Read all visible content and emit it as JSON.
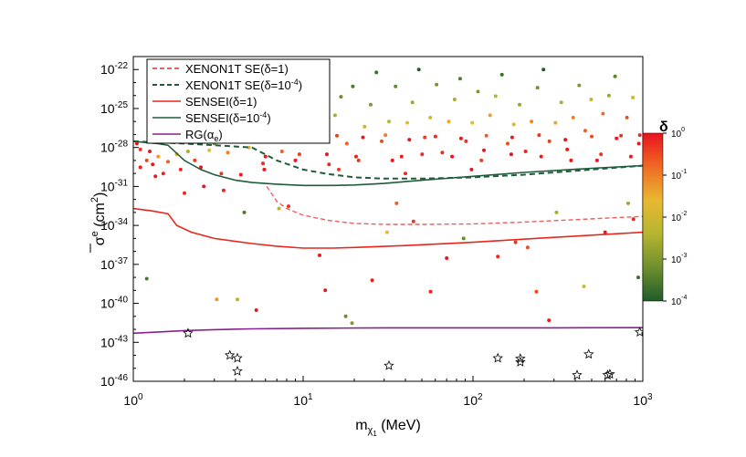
{
  "chart_data": {
    "type": "scatter",
    "title": "",
    "xlabel": {
      "base": "m",
      "sub": "χ",
      "subsub": "1",
      "unit": " (MeV)"
    },
    "ylabel": {
      "base": "σ",
      "sup": "e",
      "unit": " (cm",
      "unit_sup": "2",
      "unit_end": ")"
    },
    "x_scale": "log",
    "y_scale": "log",
    "xlim": [
      1,
      1000
    ],
    "ylim": [
      1e-46,
      1e-21
    ],
    "x_ticks": [
      {
        "value": 1,
        "base": "10",
        "exp": "0"
      },
      {
        "value": 10,
        "base": "10",
        "exp": "1"
      },
      {
        "value": 100,
        "base": "10",
        "exp": "2"
      },
      {
        "value": 1000,
        "base": "10",
        "exp": "3"
      }
    ],
    "y_ticks": [
      {
        "value": 1e-22,
        "base": "10",
        "exp": "-22"
      },
      {
        "value": 1e-25,
        "base": "10",
        "exp": "-25"
      },
      {
        "value": 1e-28,
        "base": "10",
        "exp": "-28"
      },
      {
        "value": 1e-31,
        "base": "10",
        "exp": "-31"
      },
      {
        "value": 1e-34,
        "base": "10",
        "exp": "-34"
      },
      {
        "value": 1e-37,
        "base": "10",
        "exp": "-37"
      },
      {
        "value": 1e-40,
        "base": "10",
        "exp": "-40"
      },
      {
        "value": 1e-43,
        "base": "10",
        "exp": "-43"
      },
      {
        "value": 1e-46,
        "base": "10",
        "exp": "-46"
      }
    ],
    "legend_placement": "top-left",
    "series": [
      {
        "name": "XENON1T SE(δ=1)",
        "legend_parts": {
          "main": "XENON1T SE(δ=1)",
          "sup": ""
        },
        "style": "dashed",
        "color": "#f25c5c",
        "x": [
          6.1,
          7,
          8,
          10,
          14,
          20,
          30,
          50,
          100,
          200,
          400,
          1000
        ],
        "y": [
          1e-31,
          7e-33,
          2e-33,
          6e-34,
          2.5e-34,
          1.4e-34,
          1.2e-34,
          1.2e-34,
          1.3e-34,
          1.8e-34,
          2.8e-34,
          5e-34
        ]
      },
      {
        "name": "XENON1T SE(δ=10-4)",
        "legend_parts": {
          "main": "XENON1T SE(δ=10",
          "sup": "-4",
          "tail": ")"
        },
        "style": "dashed",
        "color": "#1e5c3a",
        "x": [
          1,
          2,
          3,
          5,
          7,
          10,
          14,
          20,
          30,
          50,
          100,
          200,
          500,
          1000
        ],
        "y": [
          3e-28,
          2e-28,
          1.5e-28,
          1e-28,
          1e-29,
          2e-30,
          9e-31,
          5e-31,
          4e-31,
          4e-31,
          5e-31,
          8e-31,
          2e-30,
          4e-30
        ]
      },
      {
        "name": "SENSEI(δ=1)",
        "legend_parts": {
          "main": "SENSEI(δ=1)",
          "sup": ""
        },
        "style": "solid",
        "color": "#e8261c",
        "x": [
          1,
          1.3,
          1.6,
          1.8,
          2.2,
          3,
          5,
          7,
          10,
          15,
          20,
          40,
          100,
          300,
          1000
        ],
        "y": [
          2e-33,
          1.3e-33,
          8e-34,
          1e-34,
          3e-35,
          1e-35,
          4e-36,
          2.5e-36,
          1.8e-36,
          1.8e-36,
          2e-36,
          2.8e-36,
          5e-36,
          1.2e-35,
          3e-35
        ]
      },
      {
        "name": "SENSEI(δ=10-4)",
        "legend_parts": {
          "main": "SENSEI(δ=10",
          "sup": "-4",
          "tail": ")"
        },
        "style": "solid",
        "color": "#1e5c3a",
        "x": [
          1,
          1.4,
          1.6,
          2,
          2.5,
          3,
          4,
          5,
          7,
          10,
          15,
          20,
          30,
          50,
          100,
          200,
          500,
          1000
        ],
        "y": [
          3e-28,
          2e-28,
          1.5e-28,
          1e-29,
          2e-30,
          8e-31,
          3e-31,
          2e-31,
          1.5e-31,
          1.2e-31,
          1.2e-31,
          1.3e-31,
          1.7e-31,
          3e-31,
          6e-31,
          1.2e-30,
          2.5e-30,
          4e-30
        ]
      },
      {
        "name": "RG(αe)",
        "legend_parts": {
          "main": "RG(α",
          "sub": "e",
          "tail": ")"
        },
        "style": "solid",
        "color": "#8a1f8f",
        "x": [
          1,
          1.5,
          2,
          3,
          5,
          10,
          30,
          100,
          300,
          1000
        ],
        "y": [
          5e-43,
          6.5e-43,
          8e-43,
          9.5e-43,
          1.1e-42,
          1.2e-42,
          1.3e-42,
          1.3e-42,
          1.3e-42,
          1.35e-42
        ]
      }
    ],
    "stars": {
      "name": "benchmark points",
      "x": [
        2.1,
        3.7,
        4.1,
        4.1,
        32,
        140,
        190,
        190,
        410,
        480,
        620,
        640,
        960
      ],
      "y": [
        5e-43,
        1e-44,
        6e-45,
        6e-46,
        1.6e-45,
        6e-45,
        3e-45,
        5.5e-45,
        3e-46,
        1.2e-44,
        3e-46,
        3.5e-46,
        6e-43
      ]
    },
    "dots": {
      "name": "scan points colored by δ",
      "color_scale": "δ",
      "points": [
        [
          1.1,
          3e-30,
          0.8
        ],
        [
          1.2,
          1e-29,
          0.3
        ],
        [
          1.3,
          5e-30,
          0.9
        ],
        [
          1.4,
          2e-29,
          0.05
        ],
        [
          1.5,
          1e-30,
          0.7
        ],
        [
          1.6,
          8e-30,
          0.2
        ],
        [
          1.8,
          3e-29,
          0.01
        ],
        [
          1.9,
          2e-30,
          0.6
        ],
        [
          2.1,
          5e-29,
          0.003
        ],
        [
          2.3,
          1e-29,
          0.4
        ],
        [
          2.5,
          3e-30,
          0.9
        ],
        [
          2.8,
          6e-29,
          0.02
        ],
        [
          3.0,
          2e-28,
          0.001
        ],
        [
          3.3,
          1e-30,
          0.5
        ],
        [
          3.6,
          4e-29,
          0.1
        ],
        [
          4.0,
          2e-27,
          0.0005
        ],
        [
          4.3,
          8e-31,
          0.8
        ],
        [
          4.8,
          1e-28,
          0.03
        ],
        [
          5.2,
          3e-26,
          0.0003
        ],
        [
          5.8,
          6e-30,
          0.6
        ],
        [
          6.3,
          2e-27,
          0.002
        ],
        [
          6.9,
          1e-25,
          0.0002
        ],
        [
          7.5,
          5e-29,
          0.2
        ],
        [
          8.1,
          3e-26,
          0.0008
        ],
        [
          8.8,
          1e-24,
          0.0001
        ],
        [
          9.5,
          3e-29,
          0.4
        ],
        [
          10.3,
          6e-27,
          0.005
        ],
        [
          11.2,
          2e-25,
          0.0004
        ],
        [
          12.1,
          4e-28,
          0.1
        ],
        [
          13.1,
          1e-23,
          0.0002
        ],
        [
          14.2,
          5e-30,
          0.7
        ],
        [
          15.4,
          3e-26,
          0.003
        ],
        [
          16.7,
          8e-25,
          0.0006
        ],
        [
          18.1,
          2e-28,
          0.2
        ],
        [
          19.6,
          5e-24,
          0.0003
        ],
        [
          21.2,
          1e-29,
          0.5
        ],
        [
          23,
          4e-27,
          0.01
        ],
        [
          25,
          2e-25,
          0.001
        ],
        [
          27,
          6e-23,
          0.0002
        ],
        [
          29,
          3e-28,
          0.3
        ],
        [
          32,
          1e-26,
          0.005
        ],
        [
          35,
          5e-24,
          0.0005
        ],
        [
          38,
          2e-29,
          0.8
        ],
        [
          41,
          8e-27,
          0.02
        ],
        [
          44,
          3e-25,
          0.002
        ],
        [
          48,
          1e-22,
          0.0001
        ],
        [
          52,
          6e-28,
          0.4
        ],
        [
          56,
          2e-26,
          0.01
        ],
        [
          61,
          7e-24,
          0.0008
        ],
        [
          66,
          4e-29,
          0.6
        ],
        [
          72,
          1e-26,
          0.04
        ],
        [
          78,
          5e-25,
          0.003
        ],
        [
          84,
          2e-23,
          0.0003
        ],
        [
          91,
          3e-28,
          0.5
        ],
        [
          99,
          8e-27,
          0.02
        ],
        [
          107,
          2e-24,
          0.001
        ],
        [
          116,
          6e-29,
          0.9
        ],
        [
          126,
          3e-26,
          0.05
        ],
        [
          136,
          9e-25,
          0.004
        ],
        [
          148,
          4e-23,
          0.0002
        ],
        [
          160,
          2e-28,
          0.3
        ],
        [
          174,
          6e-27,
          0.03
        ],
        [
          188,
          2e-25,
          0.002
        ],
        [
          204,
          5e-29,
          0.7
        ],
        [
          221,
          1e-26,
          0.08
        ],
        [
          240,
          4e-24,
          0.0007
        ],
        [
          260,
          1e-22,
          0.0001
        ],
        [
          282,
          3e-28,
          0.4
        ],
        [
          306,
          8e-27,
          0.04
        ],
        [
          331,
          3e-25,
          0.003
        ],
        [
          359,
          7e-29,
          0.8
        ],
        [
          389,
          2e-26,
          0.1
        ],
        [
          422,
          6e-24,
          0.001
        ],
        [
          458,
          2e-27,
          0.2
        ],
        [
          496,
          5e-25,
          0.006
        ],
        [
          538,
          1e-29,
          0.9
        ],
        [
          583,
          4e-26,
          0.15
        ],
        [
          632,
          1e-24,
          0.002
        ],
        [
          686,
          3e-23,
          0.0004
        ],
        [
          744,
          8e-28,
          0.5
        ],
        [
          806,
          2e-26,
          0.3
        ],
        [
          874,
          7e-25,
          0.01
        ],
        [
          947,
          2e-28,
          0.9
        ],
        [
          2.0,
          3e-32,
          0.6
        ],
        [
          2.6,
          1e-31,
          0.9
        ],
        [
          3.4,
          5e-32,
          0.7
        ],
        [
          4.5,
          1e-33,
          0.0003
        ],
        [
          7.2,
          2e-33,
          0.004
        ],
        [
          13.5,
          1e-39,
          0.9
        ],
        [
          17.8,
          1e-41,
          0.0006
        ],
        [
          19.4,
          3e-42,
          0.001
        ],
        [
          25.5,
          6e-39,
          0.8
        ],
        [
          31.2,
          3e-35,
          0.02
        ],
        [
          44.6,
          2e-34,
          0.5
        ],
        [
          56.2,
          8e-40,
          0.7
        ],
        [
          70,
          3e-37,
          0.9
        ],
        [
          88,
          1e-35,
          0.0005
        ],
        [
          140,
          4e-37,
          0.6
        ],
        [
          210,
          2e-36,
          0.3
        ],
        [
          280,
          5e-42,
          0.8
        ],
        [
          310,
          1e-33,
          0.003
        ],
        [
          600,
          3e-35,
          0.9
        ],
        [
          820,
          5e-33,
          0.002
        ],
        [
          940,
          1e-38,
          0.0002
        ],
        [
          1.2,
          8e-39,
          0.0003
        ],
        [
          3.1,
          2e-40,
          0.06
        ],
        [
          4.1,
          2e-40,
          0.004
        ],
        [
          5.3,
          3e-41,
          0.9
        ],
        [
          8.2,
          3e-33,
          0.5
        ],
        [
          12.5,
          5e-37,
          0.9
        ],
        [
          35.5,
          5e-33,
          0.2
        ],
        [
          178,
          5e-36,
          0.5
        ],
        [
          236,
          8e-40,
          0.3
        ],
        [
          450,
          2e-39,
          0.01
        ],
        [
          880,
          3e-34,
          0.7
        ],
        [
          1.05,
          2e-28,
          0.9
        ],
        [
          1.1,
          7e-29,
          0.5
        ],
        [
          1.25,
          5e-29,
          0.9
        ],
        [
          1.35,
          6e-31,
          0.9
        ],
        [
          1.45,
          3e-28,
          0.4
        ],
        [
          1.7,
          5e-28,
          0.9
        ],
        [
          2.2,
          7e-28,
          0.15
        ],
        [
          2.7,
          4e-28,
          0.6
        ],
        [
          3.2,
          8e-28,
          0.9
        ],
        [
          3.8,
          6e-28,
          0.08
        ],
        [
          4.6,
          3e-28,
          0.9
        ],
        [
          5.5,
          4e-28,
          0.3
        ],
        [
          6.6,
          7e-28,
          0.7
        ],
        [
          8.5,
          9e-28,
          0.05
        ],
        [
          11.8,
          5e-28,
          0.9
        ],
        [
          15.8,
          8e-28,
          0.4
        ],
        [
          22.5,
          6e-28,
          0.9
        ],
        [
          30.5,
          9e-28,
          0.1
        ],
        [
          42.2,
          4e-28,
          0.9
        ],
        [
          60.1,
          7e-28,
          0.6
        ],
        [
          85,
          5e-28,
          0.9
        ],
        [
          120,
          8e-28,
          0.2
        ],
        [
          170,
          6e-28,
          0.9
        ],
        [
          245,
          9e-28,
          0.5
        ],
        [
          350,
          4e-28,
          0.9
        ],
        [
          500,
          7e-28,
          0.3
        ],
        [
          700,
          5e-28,
          0.9
        ],
        [
          960,
          9e-28,
          0.6
        ],
        [
          6.0,
          2e-29,
          0.9
        ],
        [
          9.0,
          1e-29,
          0.8
        ],
        [
          13.8,
          3e-29,
          0.9
        ],
        [
          20.5,
          2e-29,
          0.7
        ],
        [
          33.5,
          1e-29,
          0.9
        ],
        [
          50.2,
          3e-29,
          0.6
        ],
        [
          75.3,
          2e-29,
          0.9
        ],
        [
          112,
          1e-29,
          0.4
        ],
        [
          168,
          3e-29,
          0.9
        ],
        [
          252,
          2e-29,
          0.8
        ],
        [
          378,
          1e-29,
          0.9
        ],
        [
          567,
          3e-29,
          0.5
        ],
        [
          850,
          2e-29,
          0.9
        ],
        [
          5.9,
          2e-30,
          0.9
        ],
        [
          16.2,
          2e-30,
          0.4
        ],
        [
          40,
          1e-30,
          0.6
        ],
        [
          98,
          2e-30,
          0.9
        ]
      ]
    },
    "colorbar": {
      "title": "δ",
      "ticks": [
        {
          "value": 1,
          "base": "10",
          "exp": "0"
        },
        {
          "value": 0.1,
          "base": "10",
          "exp": "-1"
        },
        {
          "value": 0.01,
          "base": "10",
          "exp": "-2"
        },
        {
          "value": 0.001,
          "base": "10",
          "exp": "-3"
        },
        {
          "value": 0.0001,
          "base": "10",
          "exp": "-4"
        }
      ],
      "colors": [
        "#e8131f",
        "#f06a22",
        "#e9b832",
        "#b5b52f",
        "#6f8f2d",
        "#1e5c2a"
      ]
    }
  }
}
